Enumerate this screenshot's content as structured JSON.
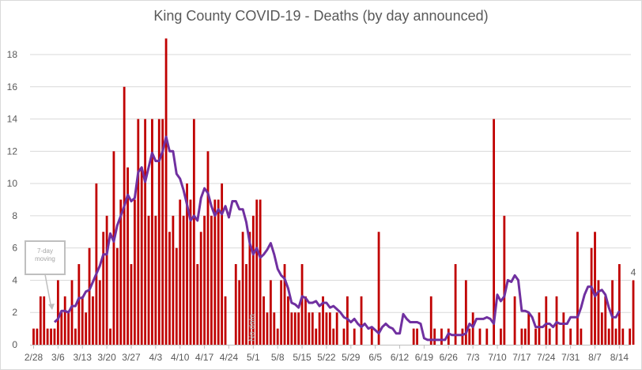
{
  "chart_data": {
    "type": "bar",
    "title": "King County COVID-19 - Deaths (by day announced)",
    "xlabel": "",
    "ylabel": "",
    "ylim": [
      0,
      19
    ],
    "y_ticks": [
      0,
      2,
      4,
      6,
      8,
      10,
      12,
      14,
      16,
      18
    ],
    "x_tick_labels": [
      "2/28",
      "3/6",
      "3/13",
      "3/20",
      "3/27",
      "4/3",
      "4/10",
      "4/17",
      "4/24",
      "5/1",
      "5/8",
      "5/15",
      "5/22",
      "5/29",
      "6/5",
      "6/12",
      "6/19",
      "6/26",
      "7/3",
      "7/10",
      "7/17",
      "7/24",
      "7/31",
      "8/7",
      "8/14"
    ],
    "grid": true,
    "start_date": "2/28",
    "series": [
      {
        "name": "Deaths",
        "type": "bar",
        "color": "#c00000",
        "values": [
          1,
          1,
          3,
          3,
          1,
          1,
          1,
          4,
          2,
          3,
          2,
          4,
          1,
          5,
          3,
          2,
          6,
          3,
          10,
          4,
          7,
          8,
          1,
          12,
          6,
          9,
          16,
          11,
          5,
          9,
          14,
          11,
          14,
          8,
          14,
          8,
          14,
          14,
          19,
          7,
          8,
          6,
          9,
          8,
          10,
          9,
          14,
          5,
          7,
          8,
          12,
          8,
          9,
          9,
          10,
          3,
          0,
          0,
          5,
          4,
          7,
          5,
          7,
          8,
          9,
          9,
          3,
          2,
          4,
          2,
          1,
          4,
          5,
          3,
          2,
          2,
          2,
          5,
          3,
          2,
          2,
          1,
          2,
          3,
          2,
          2,
          1,
          2,
          0,
          1,
          3,
          0,
          1,
          0,
          3,
          0,
          0,
          1,
          0,
          7,
          0,
          0,
          0,
          0,
          0,
          0,
          0,
          0,
          0,
          1,
          1,
          0,
          0,
          0,
          3,
          1,
          0,
          1,
          0,
          1,
          0,
          5,
          0,
          1,
          4,
          1,
          2,
          0,
          1,
          0,
          1,
          0,
          14,
          0,
          1,
          8,
          0,
          0,
          3,
          0,
          1,
          1,
          2,
          0,
          1,
          2,
          0,
          3,
          1,
          0,
          3,
          0,
          2,
          0,
          1,
          0,
          7,
          1,
          0,
          0,
          6,
          7,
          4,
          2,
          3,
          1,
          4,
          1,
          5,
          1,
          0,
          1,
          4
        ],
        "last_label": "4"
      },
      {
        "name": "7-day moving",
        "type": "line",
        "color": "#7030a0",
        "start_index": 6,
        "values": [
          1.4,
          1.6,
          2.1,
          2.1,
          2.0,
          2.4,
          2.4,
          2.9,
          2.9,
          3.3,
          3.4,
          3.9,
          4.4,
          4.9,
          5.6,
          5.6,
          6.9,
          6.4,
          7.4,
          8.0,
          8.6,
          9.3,
          8.9,
          9.1,
          10.7,
          11.0,
          10.1,
          11.0,
          11.9,
          11.4,
          11.4,
          12.0,
          12.9,
          12.0,
          12.0,
          10.6,
          10.3,
          9.6,
          8.7,
          7.7,
          8.0,
          7.7,
          9.1,
          9.7,
          9.4,
          8.6,
          8.0,
          8.4,
          8.1,
          8.6,
          7.9,
          8.9,
          8.9,
          8.4,
          8.4,
          7.6,
          6.3,
          5.6,
          6.0,
          5.4,
          5.6,
          5.9,
          6.3,
          5.6,
          4.7,
          4.3,
          4.1,
          3.5,
          2.6,
          2.5,
          2.3,
          3.0,
          2.9,
          2.6,
          2.6,
          2.7,
          2.4,
          2.6,
          2.6,
          2.3,
          2.4,
          2.2,
          2.0,
          1.7,
          1.6,
          1.4,
          1.6,
          1.3,
          1.1,
          1.3,
          1.0,
          1.1,
          0.9,
          0.7,
          1.1,
          1.3,
          1.1,
          1.0,
          0.7,
          0.7,
          1.9,
          1.6,
          1.4,
          1.4,
          1.4,
          1.3,
          0.4,
          0.3,
          0.3,
          0.3,
          0.3,
          0.3,
          0.3,
          0.7,
          0.6,
          0.6,
          0.6,
          0.6,
          0.7,
          1.3,
          1.1,
          1.6,
          1.6,
          1.6,
          1.7,
          1.6,
          1.3,
          3.1,
          2.7,
          3.0,
          4.0,
          3.9,
          4.3,
          4.0,
          2.1,
          2.1,
          2.0,
          1.7,
          1.1,
          1.1,
          1.1,
          1.3,
          1.3,
          1.1,
          1.4,
          1.3,
          1.3,
          1.3,
          1.7,
          1.7,
          1.7,
          2.3,
          3.1,
          3.6,
          3.6,
          3.0,
          3.3,
          3.4,
          3.1,
          2.3,
          1.7,
          1.7,
          2.1
        ]
      }
    ],
    "annotations": [
      {
        "text": "No data",
        "near": "5/1"
      },
      {
        "text": "7-day moving",
        "type": "callout",
        "points_to": "3/6"
      },
      {
        "text": "4",
        "type": "data-label",
        "at": "last bar"
      }
    ]
  }
}
